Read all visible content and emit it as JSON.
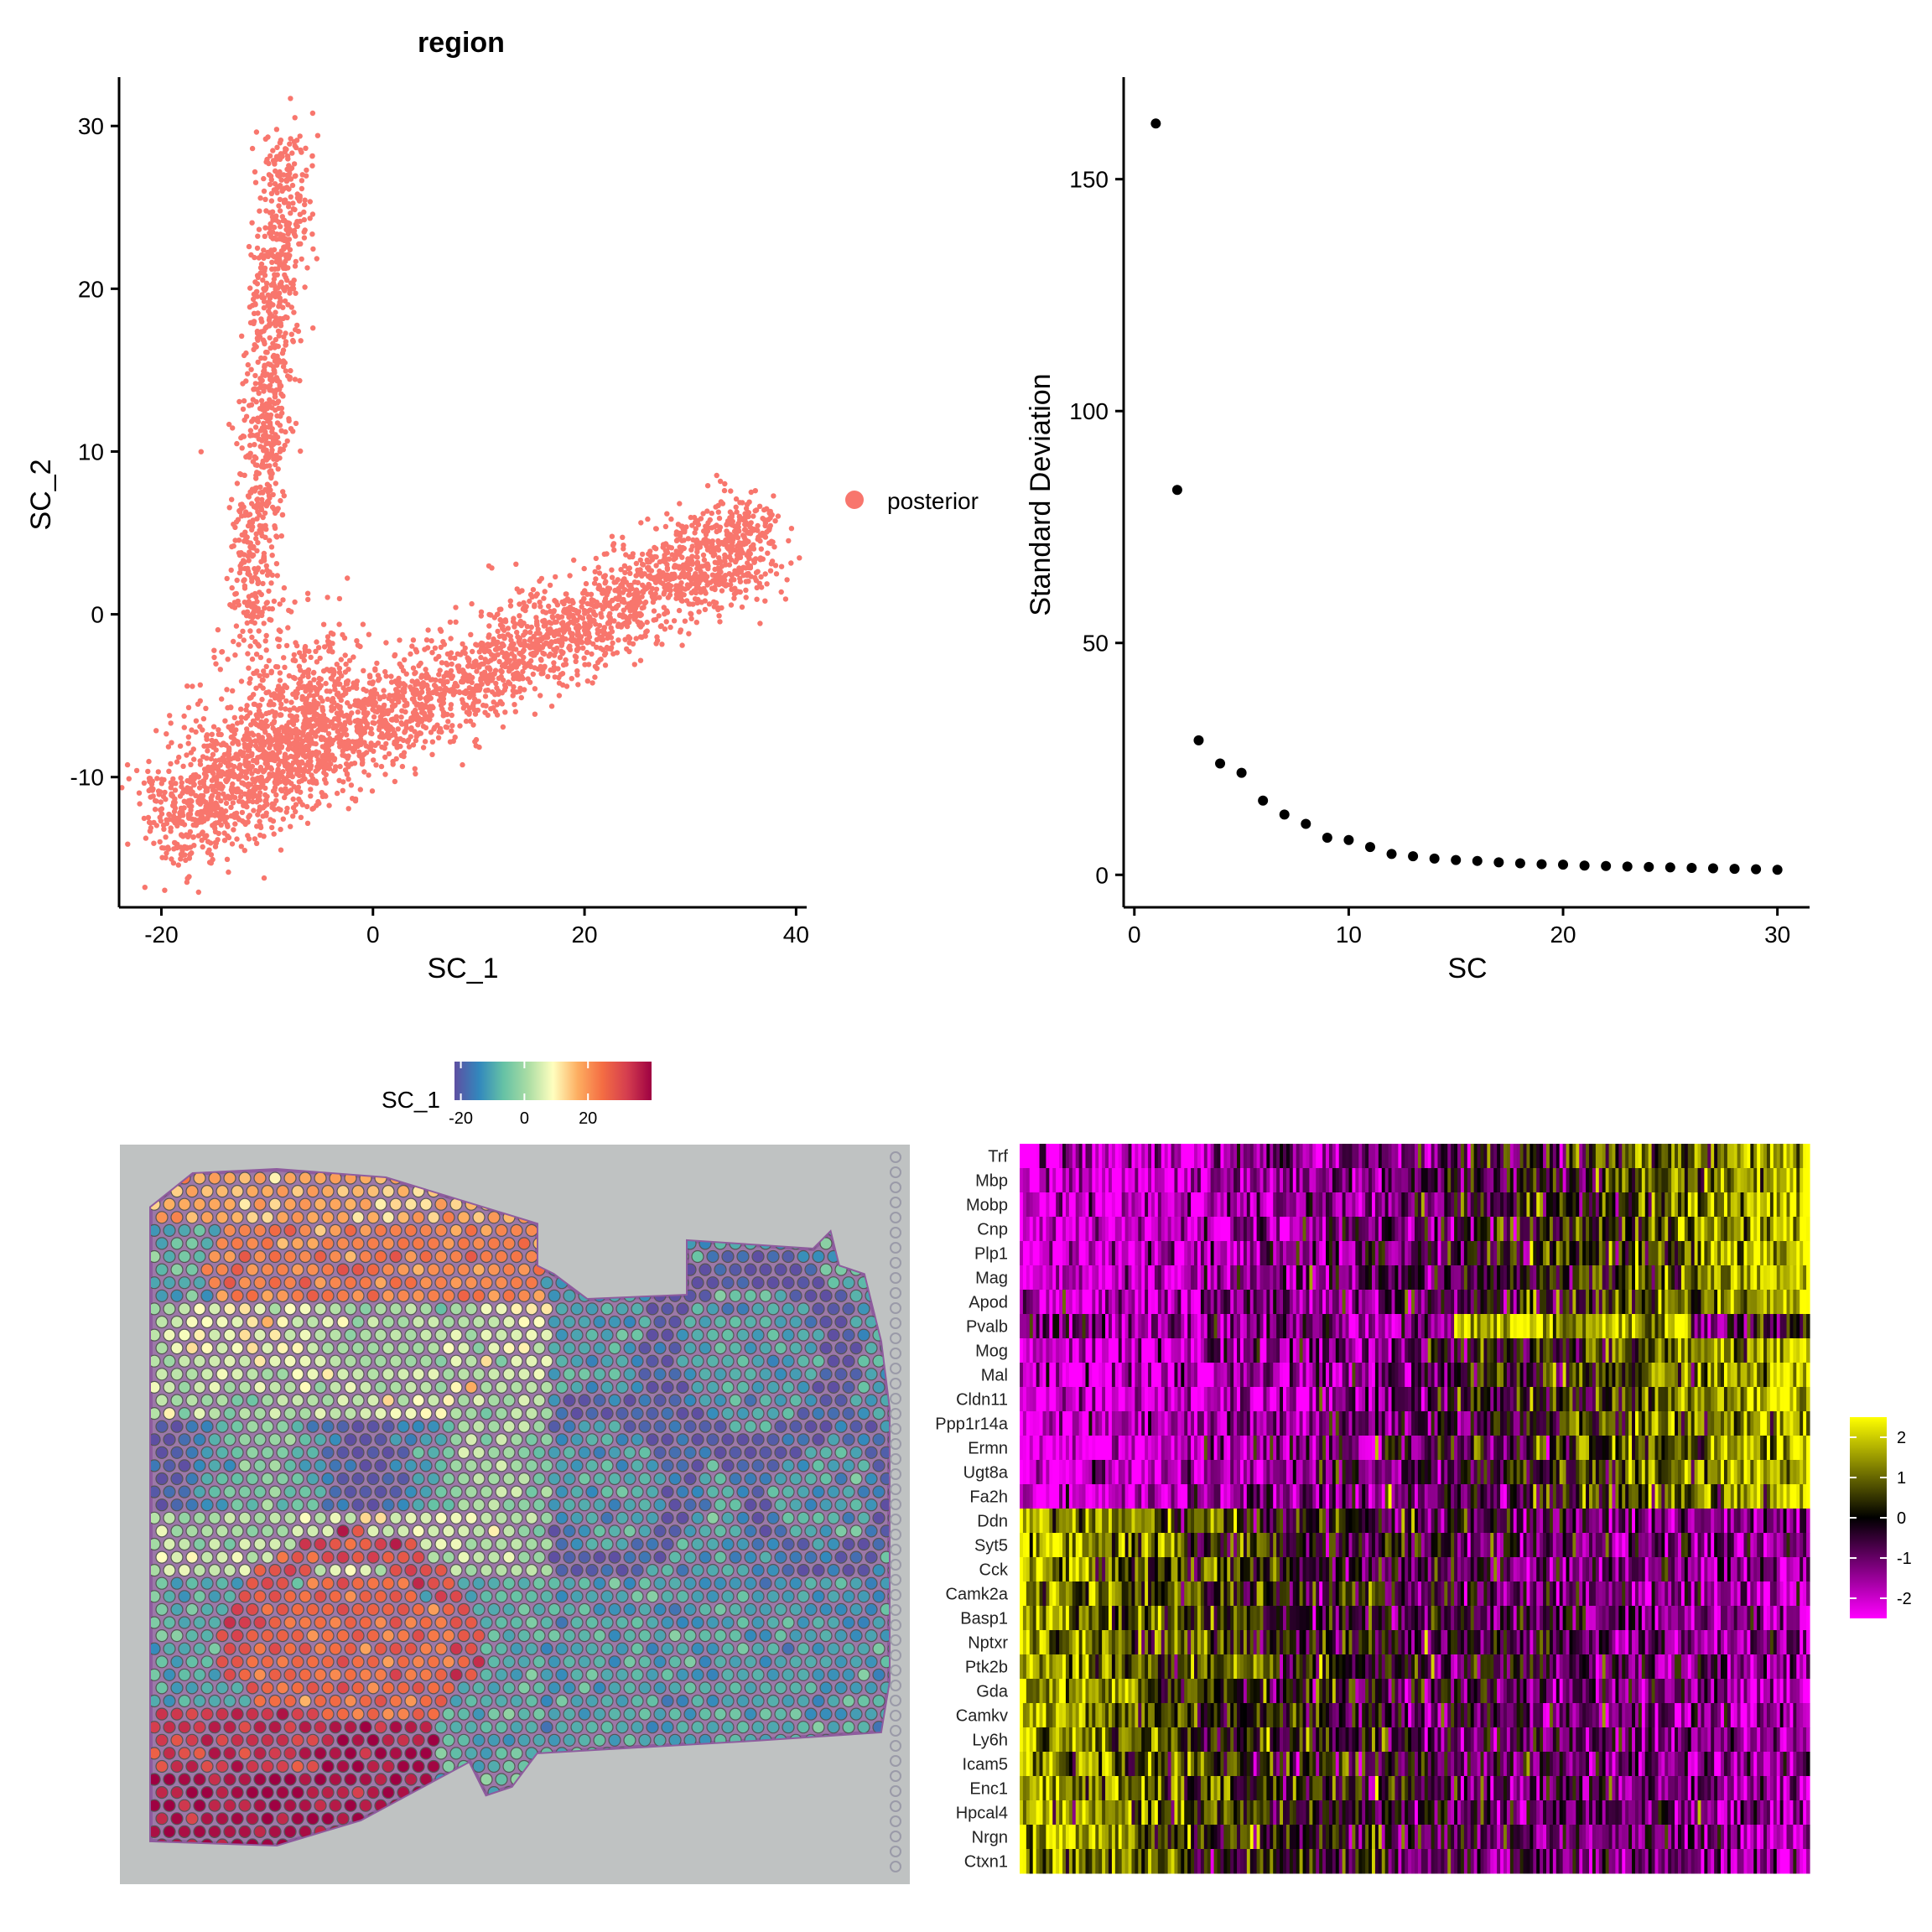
{
  "chart_data": [
    {
      "type": "scatter",
      "title": "region",
      "xlabel": "SC_1",
      "ylabel": "SC_2",
      "xlim": [
        -24,
        41
      ],
      "ylim": [
        -18,
        33
      ],
      "xticks": [
        "-20",
        "0",
        "20",
        "40"
      ],
      "yticks": [
        "-10",
        "0",
        "10",
        "20",
        "30"
      ],
      "legend": {
        "entries": [
          "posterior"
        ],
        "color": "#F8766D",
        "position": "right"
      },
      "series": [
        {
          "name": "posterior",
          "arms": [
            {
              "from": [
                -20,
                -13
              ],
              "to": [
                37,
                5
              ],
              "spread": 1.6,
              "n": 2600
            },
            {
              "from": [
                -12,
                -3
              ],
              "to": [
                -8,
                29
              ],
              "spread": 1.2,
              "n": 900
            },
            {
              "from": [
                -20,
                -13
              ],
              "to": [
                -3,
                -4
              ],
              "spread": 2.5,
              "n": 900
            }
          ]
        }
      ],
      "color": "#F8766D"
    },
    {
      "type": "scatter",
      "title": "",
      "xlabel": "SC",
      "ylabel": "Standard Deviation",
      "xlim": [
        -0.5,
        31.5
      ],
      "ylim": [
        -7,
        172
      ],
      "xticks": [
        "0",
        "10",
        "20",
        "30"
      ],
      "yticks": [
        "0",
        "50",
        "100",
        "150"
      ],
      "x": [
        1,
        2,
        3,
        4,
        5,
        6,
        7,
        8,
        9,
        10,
        11,
        12,
        13,
        14,
        15,
        16,
        17,
        18,
        19,
        20,
        21,
        22,
        23,
        24,
        25,
        26,
        27,
        28,
        29,
        30
      ],
      "y": [
        162,
        83,
        29,
        24,
        22,
        16,
        13,
        11,
        8,
        7.5,
        6,
        4.5,
        4,
        3.5,
        3.2,
        3,
        2.7,
        2.5,
        2.3,
        2.2,
        2,
        1.9,
        1.8,
        1.7,
        1.6,
        1.5,
        1.4,
        1.3,
        1.2,
        1.1
      ]
    },
    {
      "type": "heatmap",
      "title": "",
      "legend_title": "SC_1",
      "colorbar_ticks": [
        "-20",
        "0",
        "20"
      ],
      "colormap": [
        "#5E4FA2",
        "#3288BD",
        "#66C2A5",
        "#ABDDA4",
        "#FFFFBF",
        "#FDAE61",
        "#F46D43",
        "#D53E4F",
        "#9E0142"
      ],
      "value_range": [
        -22,
        40
      ]
    },
    {
      "type": "heatmap",
      "title": "",
      "genes": [
        "Trf",
        "Mbp",
        "Mobp",
        "Cnp",
        "Plp1",
        "Mag",
        "Apod",
        "Pvalb",
        "Mog",
        "Mal",
        "Cldn11",
        "Ppp1r14a",
        "Ermn",
        "Ugt8a",
        "Fa2h",
        "Ddn",
        "Syt5",
        "Cck",
        "Camk2a",
        "Basp1",
        "Nptxr",
        "Ptk2b",
        "Gda",
        "Camkv",
        "Ly6h",
        "Icam5",
        "Enc1",
        "Hpcal4",
        "Nrgn",
        "Ctxn1"
      ],
      "colorbar_ticks": [
        "2",
        "1",
        "0",
        "-1",
        "-2"
      ],
      "value_range": [
        -2.5,
        2.5
      ],
      "colormap": [
        "#FF00FF",
        "#000000",
        "#FFFF00"
      ]
    }
  ]
}
